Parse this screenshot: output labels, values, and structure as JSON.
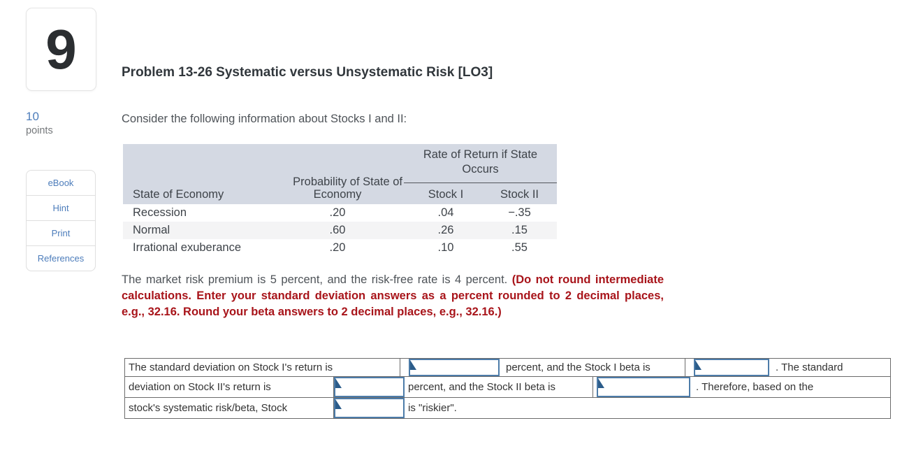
{
  "question": {
    "number": "9",
    "points_value": "10",
    "points_label": "points"
  },
  "sidebar": {
    "ebook_label": "eBook",
    "hint_label": "Hint",
    "print_label": "Print",
    "references_label": "References"
  },
  "problem": {
    "title": "Problem 13-26 Systematic versus Unsystematic Risk [LO3]",
    "intro": "Consider the following information about Stocks I and II:",
    "note_plain": "The market risk premium is 5 percent, and the risk-free rate is 4 percent.",
    "note_red": "(Do not round intermediate calculations. Enter your standard deviation answers as a percent rounded to 2 decimal places, e.g., 32.16. Round your beta answers to 2 decimal places, e.g., 32.16.)"
  },
  "econ_table": {
    "span_header": "Rate of Return if State Occurs",
    "prob_header_line1": "Probability of State of",
    "prob_header_line2": "Economy",
    "state_header": "State of Economy",
    "stock1_header": "Stock I",
    "stock2_header": "Stock II",
    "rows": [
      {
        "state": "Recession",
        "probability": ".20",
        "stock1": ".04",
        "stock2": "−.35"
      },
      {
        "state": "Normal",
        "probability": ".60",
        "stock1": ".26",
        "stock2": ".15"
      },
      {
        "state": "Irrational exuberance",
        "probability": ".20",
        "stock1": ".10",
        "stock2": ".55"
      }
    ]
  },
  "answers": {
    "row1_text1": "The standard deviation on Stock I's return is",
    "row1_text2": "percent, and the Stock I beta is",
    "row1_text3": ". The standard",
    "row2_text1": "deviation on Stock II's return is",
    "row2_text2": "percent, and the Stock II beta is",
    "row2_text3": ". Therefore, based on the",
    "row3_text1": "stock's systematic risk/beta, Stock",
    "row3_text2": "is \"riskier\".",
    "input_value": ""
  },
  "colors": {
    "accent_blue": "#4d7dbb",
    "input_border_blue": "#4d7ca9",
    "corner_marker_blue": "#2b5c8a",
    "instruction_red": "#a8141a",
    "table_header_bg": "#d4d9e3",
    "table_alt_row_bg": "#f4f4f5"
  }
}
